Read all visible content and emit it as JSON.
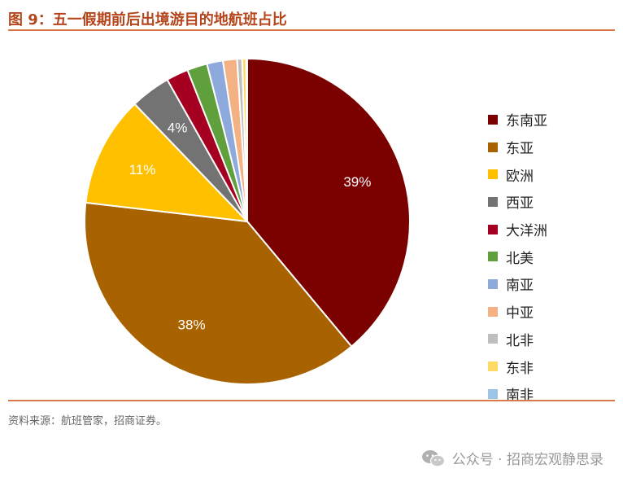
{
  "title": "图 9：五一假期前后出境游目的地航班占比",
  "source": "资料来源：航班管家，招商证券。",
  "watermark": "公众号 · 招商宏观静思录",
  "icons": {
    "watermark": "wechat-icon"
  },
  "chart_data": {
    "type": "pie",
    "title": "",
    "start": "12 o'clock",
    "direction": "clockwise",
    "legend_position": "right",
    "series": [
      {
        "name": "东南亚",
        "value": 39,
        "label": "39%",
        "color": "#7b0000"
      },
      {
        "name": "东亚",
        "value": 38,
        "label": "38%",
        "color": "#a86300"
      },
      {
        "name": "欧洲",
        "value": 11,
        "label": "11%",
        "color": "#ffc000"
      },
      {
        "name": "西亚",
        "value": 4,
        "label": "4%",
        "color": "#737373"
      },
      {
        "name": "大洋洲",
        "value": 2.2,
        "label": "",
        "color": "#a50021"
      },
      {
        "name": "北美",
        "value": 2,
        "label": "",
        "color": "#5f9f3c"
      },
      {
        "name": "南亚",
        "value": 1.6,
        "label": "",
        "color": "#8ea9db"
      },
      {
        "name": "中亚",
        "value": 1.4,
        "label": "",
        "color": "#f4b183"
      },
      {
        "name": "北非",
        "value": 0.5,
        "label": "",
        "color": "#bfbfbf"
      },
      {
        "name": "东非",
        "value": 0.4,
        "label": "",
        "color": "#ffd966"
      },
      {
        "name": "南非",
        "value": 0.1,
        "label": "",
        "color": "#9dc3e6"
      }
    ]
  }
}
